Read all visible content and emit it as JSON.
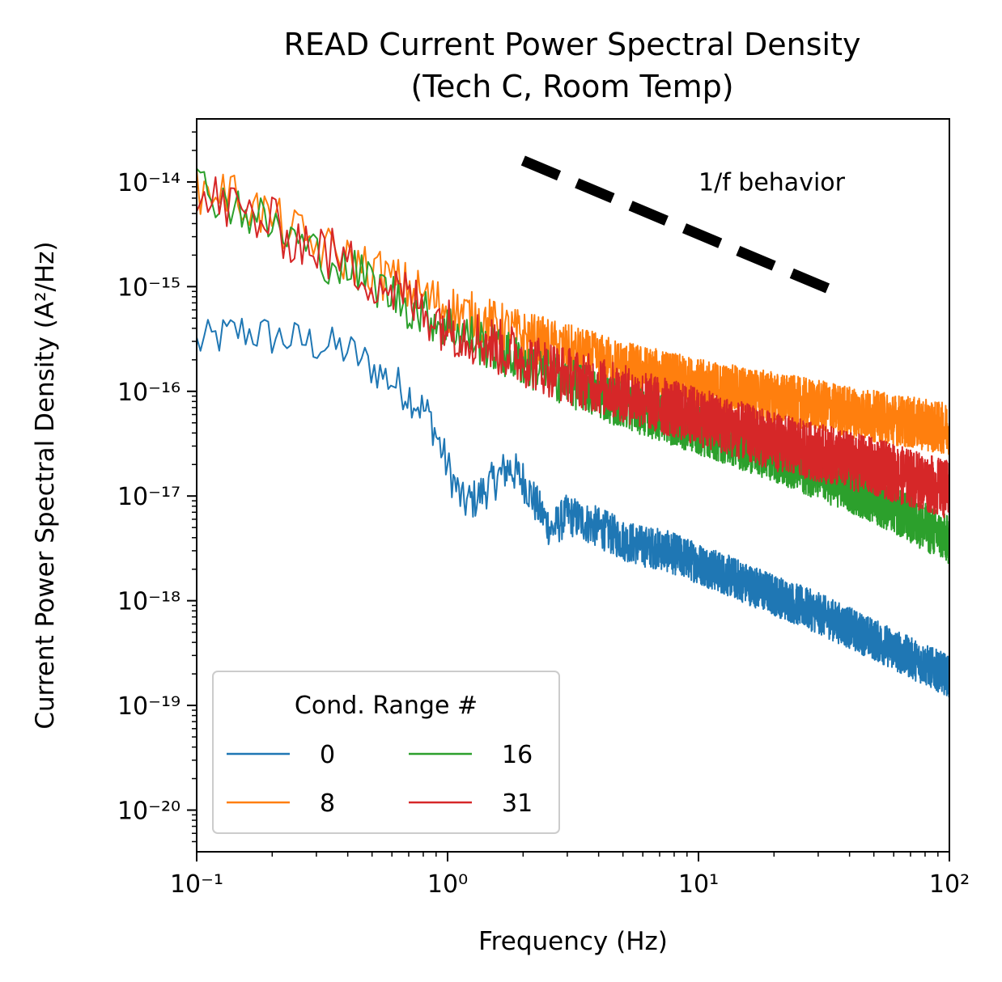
{
  "chart_data": {
    "type": "line",
    "title_lines": [
      "READ Current Power Spectral Density",
      "(Tech C, Room Temp)"
    ],
    "xlabel": "Frequency (Hz)",
    "ylabel": "Current Power Spectral Density (A²/Hz)",
    "x_scale": "log",
    "y_scale": "log",
    "xlim": [
      0.1,
      100
    ],
    "ylim": [
      4e-21,
      4e-14
    ],
    "x_ticks": [
      {
        "value": 0.1,
        "label": "10⁻¹"
      },
      {
        "value": 1,
        "label": "10⁰"
      },
      {
        "value": 10,
        "label": "10¹"
      },
      {
        "value": 100,
        "label": "10²"
      }
    ],
    "y_ticks": [
      {
        "value": 1e-14,
        "label": "10⁻¹⁴"
      },
      {
        "value": 1e-15,
        "label": "10⁻¹⁵"
      },
      {
        "value": 1e-16,
        "label": "10⁻¹⁶"
      },
      {
        "value": 1e-17,
        "label": "10⁻¹⁷"
      },
      {
        "value": 1e-18,
        "label": "10⁻¹⁸"
      },
      {
        "value": 1e-19,
        "label": "10⁻¹⁹"
      },
      {
        "value": 1e-20,
        "label": "10⁻²⁰"
      }
    ],
    "legend": {
      "title": "Cond. Range #",
      "placement": "lower-left",
      "columns": 2
    },
    "series": [
      {
        "name": "0",
        "color": "#1f77b4",
        "points": [
          [
            0.1,
            3e-16
          ],
          [
            0.15,
            4e-16
          ],
          [
            0.2,
            3.5e-16
          ],
          [
            0.3,
            3e-16
          ],
          [
            0.4,
            2.6e-16
          ],
          [
            0.5,
            1.8e-16
          ],
          [
            0.7,
            1e-16
          ],
          [
            0.85,
            6e-17
          ],
          [
            1.0,
            2e-17
          ],
          [
            1.15,
            9e-18
          ],
          [
            1.3,
            1e-17
          ],
          [
            1.5,
            1.4e-17
          ],
          [
            1.75,
            2e-17
          ],
          [
            2.0,
            1.5e-17
          ],
          [
            2.3,
            8e-18
          ],
          [
            2.6,
            5e-18
          ],
          [
            3.0,
            7e-18
          ],
          [
            3.5,
            6e-18
          ],
          [
            4.2,
            5e-18
          ],
          [
            5.0,
            4e-18
          ],
          [
            6.0,
            3.5e-18
          ],
          [
            7.0,
            3.3e-18
          ],
          [
            8.5,
            2.8e-18
          ],
          [
            10,
            2.4e-18
          ],
          [
            15,
            1.6e-18
          ],
          [
            20,
            1.2e-18
          ],
          [
            30,
            8e-19
          ],
          [
            50,
            4.5e-19
          ],
          [
            70,
            3e-19
          ],
          [
            100,
            2e-19
          ]
        ],
        "noise_band": [
          0.6,
          1.5
        ]
      },
      {
        "name": "8",
        "color": "#ff7f0e",
        "points": [
          [
            0.1,
            8e-15
          ],
          [
            0.12,
            9e-15
          ],
          [
            0.15,
            7e-15
          ],
          [
            0.2,
            4.5e-15
          ],
          [
            0.3,
            2.5e-15
          ],
          [
            0.5,
            1.5e-15
          ],
          [
            0.7,
            1e-15
          ],
          [
            1.0,
            6.5e-16
          ],
          [
            2.0,
            3.5e-16
          ],
          [
            3.0,
            2.6e-16
          ],
          [
            5.0,
            1.8e-16
          ],
          [
            10,
            1.2e-16
          ],
          [
            20,
            9e-17
          ],
          [
            50,
            6e-17
          ],
          [
            100,
            4.5e-17
          ]
        ],
        "noise_band": [
          0.55,
          1.7
        ]
      },
      {
        "name": "16",
        "color": "#2ca02c",
        "points": [
          [
            0.1,
            1e-14
          ],
          [
            0.12,
            8e-15
          ],
          [
            0.15,
            6e-15
          ],
          [
            0.2,
            4e-15
          ],
          [
            0.3,
            2.2e-15
          ],
          [
            0.5,
            1.2e-15
          ],
          [
            0.7,
            7e-16
          ],
          [
            1.0,
            4.5e-16
          ],
          [
            2.0,
            2e-16
          ],
          [
            3.0,
            1.3e-16
          ],
          [
            5.0,
            8e-17
          ],
          [
            10,
            4.5e-17
          ],
          [
            20,
            2.5e-17
          ],
          [
            50,
            1e-17
          ],
          [
            100,
            4e-18
          ]
        ],
        "noise_band": [
          0.55,
          1.6
        ]
      },
      {
        "name": "31",
        "color": "#d62728",
        "points": [
          [
            0.1,
            6e-15
          ],
          [
            0.12,
            7e-15
          ],
          [
            0.15,
            5.5e-15
          ],
          [
            0.2,
            4e-15
          ],
          [
            0.3,
            2.5e-15
          ],
          [
            0.5,
            1.3e-15
          ],
          [
            0.7,
            8e-16
          ],
          [
            1.0,
            4.5e-16
          ],
          [
            2.0,
            2.2e-16
          ],
          [
            3.0,
            1.5e-16
          ],
          [
            5.0,
            1e-16
          ],
          [
            10,
            6e-17
          ],
          [
            20,
            3.5e-17
          ],
          [
            50,
            2e-17
          ],
          [
            100,
            1.2e-17
          ]
        ],
        "noise_band": [
          0.5,
          1.8
        ]
      }
    ],
    "annotations": [
      {
        "text": "1/f behavior",
        "x": 10,
        "y": 8e-15
      },
      {
        "type": "reference_line",
        "style": "dashed",
        "color": "#000000",
        "from": [
          2,
          1.6e-14
        ],
        "to": [
          35,
          9e-16
        ]
      }
    ]
  }
}
